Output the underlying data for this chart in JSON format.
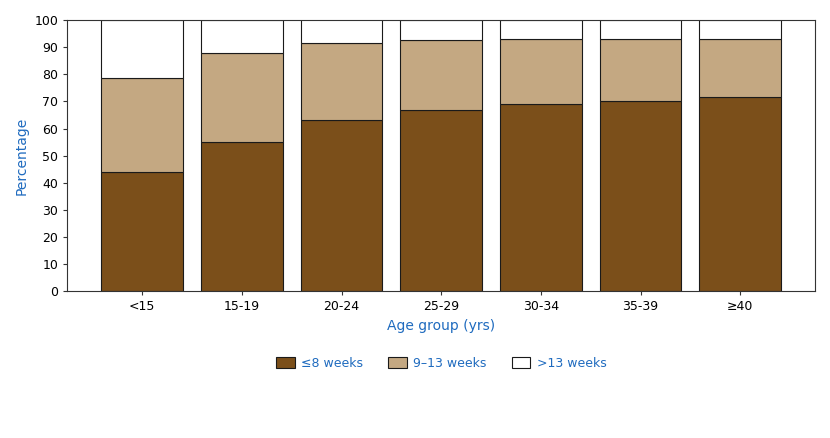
{
  "categories": [
    "<15",
    "15-19",
    "20-24",
    "25-29",
    "30-34",
    "35-39",
    "≥40"
  ],
  "le8_weeks": [
    44.0,
    55.0,
    63.0,
    67.0,
    69.0,
    70.0,
    71.5
  ],
  "9_13_weeks": [
    34.5,
    33.0,
    28.5,
    25.5,
    24.0,
    23.0,
    21.5
  ],
  "gt13_weeks": [
    21.5,
    12.0,
    9.0,
    7.5,
    7.0,
    7.0,
    7.0
  ],
  "color_le8": "#7B4F1A",
  "color_913": "#C4A882",
  "color_gt13": "#FFFFFF",
  "bar_edge_color": "#1A1A1A",
  "bar_width": 0.82,
  "ylim": [
    0,
    100
  ],
  "yticks": [
    0,
    10,
    20,
    30,
    40,
    50,
    60,
    70,
    80,
    90,
    100
  ],
  "ylabel": "Percentage",
  "xlabel": "Age group (yrs)",
  "legend_labels": [
    "≤8 weeks",
    "9–13 weeks",
    ">13 weeks"
  ],
  "axis_label_color": "#1F6BBF",
  "tick_label_color": "#000000",
  "background_color": "#FFFFFF",
  "spine_color": "#333333",
  "tick_fontsize": 9,
  "label_fontsize": 10
}
